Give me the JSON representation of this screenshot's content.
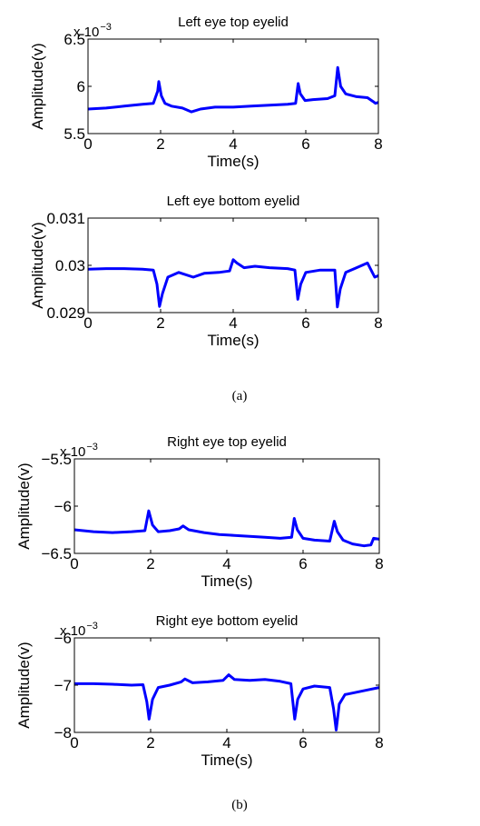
{
  "panel_captions": [
    "(a)",
    "(b)"
  ],
  "colors": {
    "line": "#0000ff",
    "axis": "#000000",
    "background": "#ffffff"
  },
  "chart_data": [
    {
      "type": "line",
      "title": "Left eye top eyelid",
      "xlabel": "Time(s)",
      "ylabel": "Amplitude(v)",
      "exponent_label": "x 10",
      "exponent_power": "−3",
      "xlim": [
        0,
        8
      ],
      "ylim": [
        5.5,
        6.5
      ],
      "xticks": [
        "0",
        "2",
        "4",
        "6",
        "8"
      ],
      "yticks": [
        "5.5",
        "6",
        "6.5"
      ],
      "grid": false,
      "series": [
        {
          "x": [
            0,
            0.5,
            1.0,
            1.5,
            1.8,
            1.92,
            1.95,
            2.02,
            2.12,
            2.3,
            2.6,
            2.85,
            3.1,
            3.5,
            4.0,
            4.5,
            5.0,
            5.5,
            5.72,
            5.79,
            5.85,
            5.98,
            6.2,
            6.6,
            6.8,
            6.88,
            6.96,
            7.1,
            7.4,
            7.7,
            7.85,
            7.92,
            8.0
          ],
          "y": [
            5.76,
            5.77,
            5.79,
            5.81,
            5.82,
            5.95,
            6.05,
            5.9,
            5.82,
            5.79,
            5.77,
            5.73,
            5.76,
            5.78,
            5.78,
            5.79,
            5.8,
            5.81,
            5.82,
            6.03,
            5.92,
            5.85,
            5.86,
            5.87,
            5.9,
            6.2,
            6.0,
            5.92,
            5.89,
            5.88,
            5.84,
            5.82,
            5.83
          ]
        }
      ]
    },
    {
      "type": "line",
      "title": "Left eye bottom eyelid",
      "xlabel": "Time(s)",
      "ylabel": "Amplitude(v)",
      "exponent_label": "",
      "exponent_power": "",
      "xlim": [
        0,
        8
      ],
      "ylim": [
        0.029,
        0.031
      ],
      "xticks": [
        "0",
        "2",
        "4",
        "6",
        "8"
      ],
      "yticks": [
        "0.029",
        "0.03",
        "0.031"
      ],
      "grid": false,
      "series": [
        {
          "x": [
            0,
            0.5,
            1.0,
            1.5,
            1.8,
            1.9,
            1.97,
            2.05,
            2.2,
            2.5,
            2.9,
            3.2,
            3.6,
            3.9,
            4.0,
            4.1,
            4.3,
            4.6,
            5.0,
            5.5,
            5.7,
            5.78,
            5.86,
            6.0,
            6.4,
            6.8,
            6.87,
            6.95,
            7.1,
            7.4,
            7.7,
            7.9,
            8.0
          ],
          "y": [
            0.02992,
            0.02993,
            0.02993,
            0.02992,
            0.0299,
            0.0296,
            0.02913,
            0.0294,
            0.02975,
            0.02985,
            0.02975,
            0.02983,
            0.02985,
            0.02988,
            0.03012,
            0.03005,
            0.02995,
            0.02998,
            0.02995,
            0.02993,
            0.0299,
            0.02928,
            0.0296,
            0.02985,
            0.0299,
            0.0299,
            0.02912,
            0.0295,
            0.02985,
            0.02995,
            0.03005,
            0.02975,
            0.02978
          ]
        }
      ]
    },
    {
      "type": "line",
      "title": "Right eye top eyelid",
      "xlabel": "Time(s)",
      "ylabel": "Amplitude(v)",
      "exponent_label": "x 10",
      "exponent_power": "−3",
      "xlim": [
        0,
        8
      ],
      "ylim": [
        -6.5,
        -5.5
      ],
      "xticks": [
        "0",
        "2",
        "4",
        "6",
        "8"
      ],
      "yticks": [
        "−5.5",
        "−6",
        "−6.5"
      ],
      "yvalues": [
        -5.5,
        -6,
        -6.5
      ],
      "grid": false,
      "series": [
        {
          "x": [
            0,
            0.5,
            1.0,
            1.5,
            1.85,
            1.95,
            2.05,
            2.2,
            2.5,
            2.75,
            2.85,
            3.0,
            3.4,
            3.8,
            4.2,
            4.6,
            5.0,
            5.4,
            5.7,
            5.77,
            5.85,
            6.0,
            6.3,
            6.7,
            6.82,
            6.9,
            7.05,
            7.3,
            7.6,
            7.78,
            7.85,
            8.0
          ],
          "y": [
            -6.25,
            -6.27,
            -6.28,
            -6.27,
            -6.26,
            -6.05,
            -6.2,
            -6.27,
            -6.26,
            -6.24,
            -6.21,
            -6.25,
            -6.28,
            -6.3,
            -6.31,
            -6.32,
            -6.33,
            -6.34,
            -6.33,
            -6.13,
            -6.25,
            -6.34,
            -6.36,
            -6.37,
            -6.16,
            -6.27,
            -6.36,
            -6.4,
            -6.42,
            -6.41,
            -6.34,
            -6.35
          ]
        }
      ]
    },
    {
      "type": "line",
      "title": "Right eye bottom eyelid",
      "xlabel": "Time(s)",
      "ylabel": "Amplitude(v)",
      "exponent_label": "x 10",
      "exponent_power": "−3",
      "xlim": [
        0,
        8
      ],
      "ylim": [
        -8,
        -6
      ],
      "xticks": [
        "0",
        "2",
        "4",
        "6",
        "8"
      ],
      "yticks": [
        "−6",
        "−7",
        "−8"
      ],
      "yvalues": [
        -6,
        -7,
        -8
      ],
      "grid": false,
      "series": [
        {
          "x": [
            0,
            0.5,
            1.0,
            1.5,
            1.8,
            1.9,
            1.96,
            2.05,
            2.2,
            2.5,
            2.8,
            2.9,
            3.1,
            3.5,
            3.9,
            4.05,
            4.2,
            4.6,
            5.0,
            5.4,
            5.68,
            5.78,
            5.86,
            6.0,
            6.3,
            6.7,
            6.8,
            6.87,
            6.95,
            7.1,
            7.4,
            7.7,
            8.0
          ],
          "y": [
            -6.97,
            -6.97,
            -6.98,
            -7.0,
            -6.99,
            -7.35,
            -7.72,
            -7.3,
            -7.05,
            -7.0,
            -6.93,
            -6.87,
            -6.95,
            -6.93,
            -6.9,
            -6.78,
            -6.88,
            -6.9,
            -6.88,
            -6.92,
            -6.97,
            -7.72,
            -7.3,
            -7.08,
            -7.02,
            -7.05,
            -7.5,
            -7.95,
            -7.4,
            -7.2,
            -7.15,
            -7.1,
            -7.05
          ]
        }
      ]
    }
  ]
}
